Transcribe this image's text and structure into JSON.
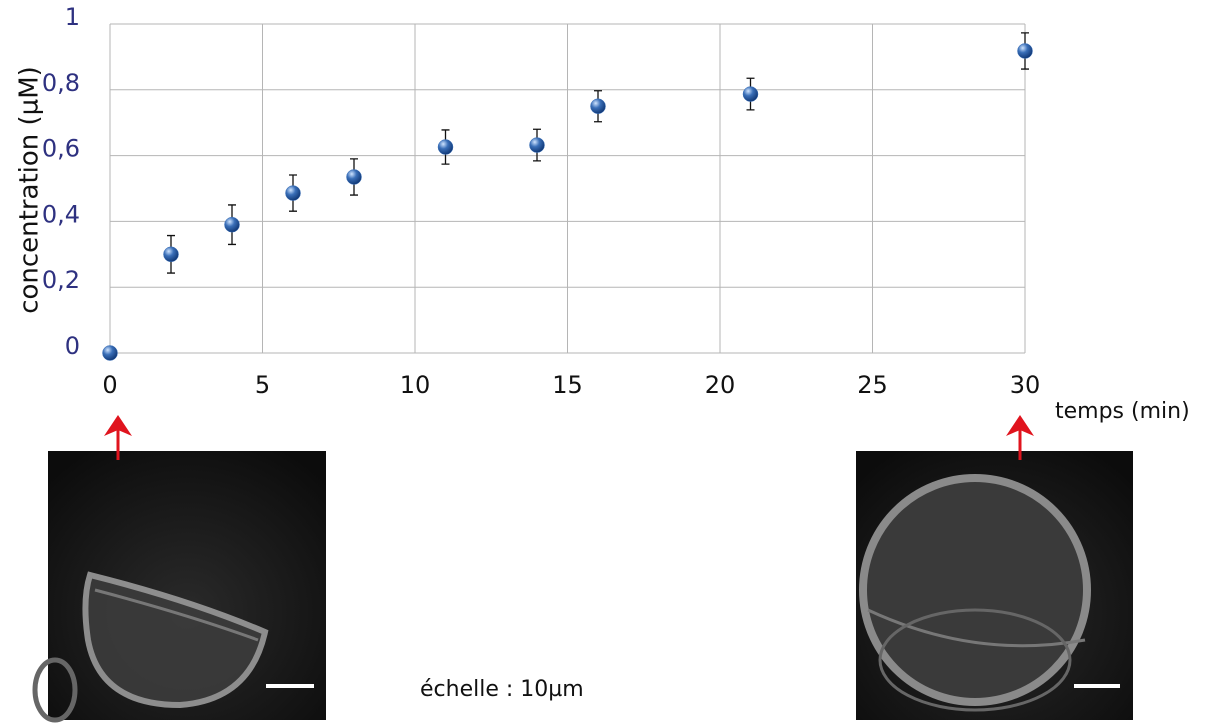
{
  "chart_data": {
    "type": "scatter",
    "ylabel": "concentration (µM)",
    "xlabel": "temps (min)",
    "x": [
      0,
      2,
      4,
      6,
      8,
      11,
      14,
      16,
      21,
      30
    ],
    "values": [
      0,
      0.3,
      0.39,
      0.486,
      0.535,
      0.626,
      0.632,
      0.75,
      0.787,
      0.918
    ],
    "errors": [
      0,
      0.057,
      0.06,
      0.055,
      0.055,
      0.052,
      0.048,
      0.047,
      0.048,
      0.055
    ],
    "color": "#3a6fb8",
    "xlim": [
      0,
      30
    ],
    "ylim": [
      0,
      1
    ],
    "xticks": [
      0,
      5,
      10,
      15,
      20,
      25,
      30
    ],
    "yticks": [
      0,
      {
        "value": 0.2,
        "label": "0,2"
      },
      {
        "value": 0.4,
        "label": "0,4"
      },
      {
        "value": 0.6,
        "label": "0,6"
      },
      {
        "value": 0.8,
        "label": "0,8"
      },
      1
    ],
    "grid": true
  },
  "caption": "échelle : 10µm"
}
